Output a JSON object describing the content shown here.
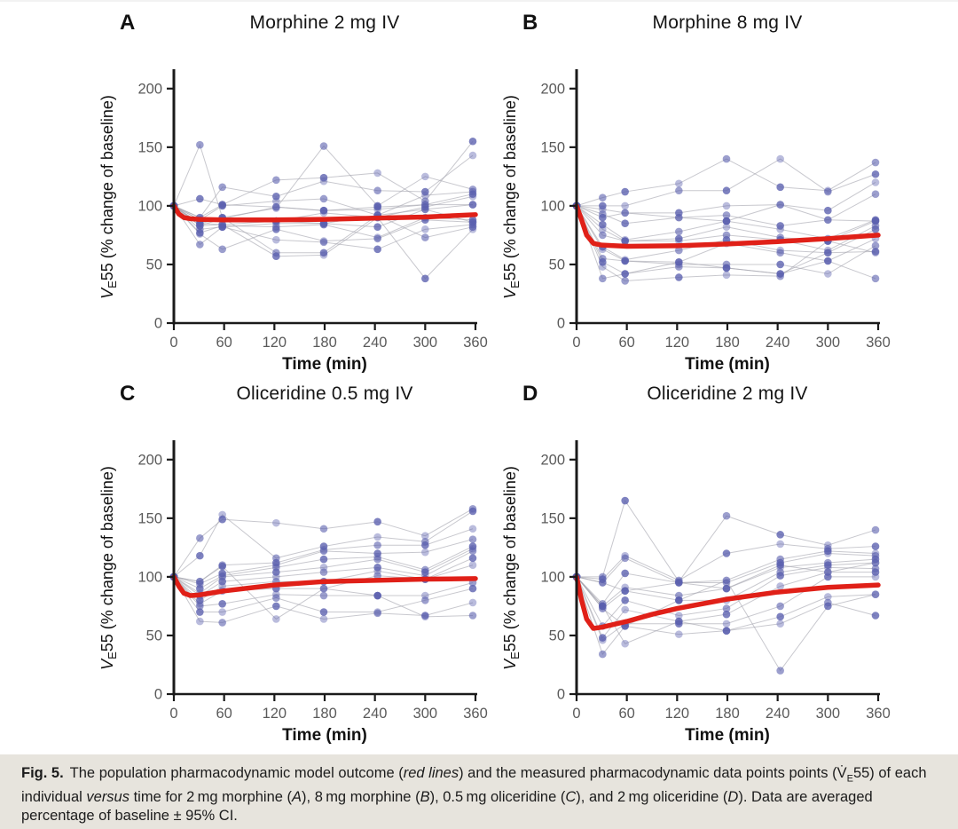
{
  "caption": {
    "segments": [
      {
        "t": "Fig. 5.",
        "b": true
      },
      {
        "t": "The population pharmacodynamic model outcome ("
      },
      {
        "t": "red lines",
        "i": true
      },
      {
        "t": ") and the measured pharmacodynamic data points points (V̇"
      },
      {
        "t": "E",
        "sub": true
      },
      {
        "t": "55) of each individual "
      },
      {
        "t": "versus",
        "i": true
      },
      {
        "t": " time for 2 mg morphine ("
      },
      {
        "t": "A",
        "i": true
      },
      {
        "t": "), 8 mg morphine ("
      },
      {
        "t": "B",
        "i": true
      },
      {
        "t": "), 0.5 mg oliceridine ("
      },
      {
        "t": "C",
        "i": true
      },
      {
        "t": "), and 2 mg oliceridine ("
      },
      {
        "t": "D",
        "i": true
      },
      {
        "t": "). Data are averaged percentage of baseline ± 95% CI."
      }
    ]
  },
  "chart_data": {
    "type": "scatter",
    "description": "Four panels of individual VE55 (% of baseline) versus time with population PD model fit (red line)",
    "times": [
      0,
      30,
      60,
      120,
      180,
      240,
      300,
      360
    ],
    "axes": {
      "xlabel": "Time (min)",
      "x_ticks": [
        0,
        60,
        120,
        180,
        240,
        300,
        360
      ],
      "y_ticks": [
        0,
        50,
        100,
        150,
        200
      ],
      "x_range": [
        0,
        360
      ],
      "y_range": [
        0,
        215
      ]
    },
    "ylabel_parts": [
      {
        "t": "V",
        "i": true
      },
      {
        "t": "E",
        "sub": true
      },
      {
        "t": "55 (% change of baseline)"
      }
    ],
    "colors": {
      "red_line": "#e02018",
      "point": "#5a5fae",
      "connect": "#a3a3ad",
      "axis": "#1a1a1a",
      "tick_text": "#5a5a5a"
    },
    "panels": [
      {
        "label": "A",
        "title": "Morphine 2 mg IV",
        "red_line": [
          [
            0,
            100
          ],
          [
            6,
            93
          ],
          [
            12,
            90
          ],
          [
            20,
            89
          ],
          [
            30,
            88.5
          ],
          [
            60,
            88
          ],
          [
            120,
            88
          ],
          [
            180,
            88.5
          ],
          [
            240,
            89.5
          ],
          [
            300,
            90.5
          ],
          [
            360,
            92.5
          ]
        ],
        "individuals": [
          [
            100,
            152,
            90,
            98,
            151,
            100,
            125,
            114
          ],
          [
            100,
            106,
            101,
            122,
            124,
            128,
            104,
            155
          ],
          [
            100,
            90,
            116,
            108,
            121,
            113,
            112,
            143
          ],
          [
            100,
            88,
            100,
            104,
            106,
            92,
            109,
            112
          ],
          [
            100,
            85,
            89,
            99,
            96,
            97,
            101,
            110
          ],
          [
            100,
            83,
            84,
            87,
            94,
            90,
            99,
            108
          ],
          [
            100,
            80,
            82,
            85,
            85,
            82,
            97,
            101
          ],
          [
            100,
            77,
            83,
            82,
            84,
            73,
            90,
            88
          ],
          [
            100,
            76,
            63,
            80,
            70,
            72,
            88,
            86
          ],
          [
            100,
            67,
            82,
            71,
            69,
            63,
            80,
            84
          ],
          [
            100,
            88,
            90,
            60,
            60,
            92,
            73,
            82
          ],
          [
            100,
            85,
            84,
            57,
            58,
            90,
            38,
            80
          ],
          [
            100,
            90,
            101,
            99,
            96,
            99,
            101,
            101
          ],
          [
            100,
            83,
            89,
            87,
            85,
            92,
            97,
            86
          ]
        ]
      },
      {
        "label": "B",
        "title": "Morphine 8 mg IV",
        "red_line": [
          [
            0,
            100
          ],
          [
            6,
            88
          ],
          [
            12,
            75
          ],
          [
            20,
            68
          ],
          [
            30,
            66.5
          ],
          [
            60,
            65.5
          ],
          [
            120,
            66
          ],
          [
            180,
            67.5
          ],
          [
            240,
            69.5
          ],
          [
            300,
            72
          ],
          [
            360,
            75
          ]
        ],
        "individuals": [
          [
            100,
            107,
            112,
            119,
            140,
            116,
            113,
            137
          ],
          [
            100,
            100,
            100,
            113,
            113,
            140,
            112,
            127
          ],
          [
            100,
            97,
            94,
            94,
            100,
            101,
            96,
            120
          ],
          [
            100,
            93,
            85,
            90,
            92,
            83,
            88,
            110
          ],
          [
            100,
            84,
            71,
            78,
            87,
            80,
            72,
            88
          ],
          [
            100,
            80,
            70,
            72,
            82,
            73,
            70,
            87
          ],
          [
            100,
            75,
            70,
            70,
            75,
            71,
            62,
            83
          ],
          [
            100,
            65,
            54,
            62,
            71,
            62,
            60,
            80
          ],
          [
            100,
            63,
            53,
            52,
            68,
            60,
            53,
            72
          ],
          [
            100,
            55,
            53,
            50,
            50,
            50,
            42,
            66
          ],
          [
            100,
            52,
            42,
            48,
            47,
            42,
            60,
            61
          ],
          [
            100,
            48,
            36,
            39,
            41,
            40,
            70,
            60
          ],
          [
            100,
            38,
            42,
            52,
            47,
            42,
            53,
            38
          ],
          [
            100,
            90,
            94,
            90,
            87,
            101,
            88,
            87
          ]
        ]
      },
      {
        "label": "C",
        "title": "Oliceridine 0.5 mg IV",
        "red_line": [
          [
            0,
            100
          ],
          [
            6,
            92
          ],
          [
            12,
            86
          ],
          [
            20,
            84
          ],
          [
            30,
            84.5
          ],
          [
            60,
            88
          ],
          [
            120,
            93
          ],
          [
            180,
            96
          ],
          [
            240,
            97
          ],
          [
            300,
            98
          ],
          [
            360,
            98.5
          ]
        ],
        "individuals": [
          [
            100,
            133,
            149,
            146,
            141,
            147,
            135,
            158
          ],
          [
            100,
            118,
            153,
            116,
            126,
            134,
            130,
            156
          ],
          [
            100,
            96,
            110,
            112,
            123,
            127,
            127,
            141
          ],
          [
            100,
            94,
            103,
            110,
            122,
            120,
            121,
            132
          ],
          [
            100,
            90,
            101,
            108,
            115,
            117,
            106,
            126
          ],
          [
            100,
            86,
            100,
            104,
            108,
            115,
            104,
            124
          ],
          [
            100,
            84,
            96,
            100,
            104,
            108,
            101,
            122
          ],
          [
            100,
            80,
            92,
            96,
            96,
            105,
            98,
            116
          ],
          [
            100,
            77,
            88,
            90,
            90,
            101,
            98,
            110
          ],
          [
            100,
            75,
            77,
            85,
            84,
            84,
            84,
            95
          ],
          [
            100,
            70,
            70,
            82,
            70,
            70,
            80,
            90
          ],
          [
            100,
            62,
            61,
            75,
            64,
            69,
            67,
            78
          ],
          [
            100,
            96,
            109,
            64,
            90,
            84,
            66,
            67
          ]
        ]
      },
      {
        "label": "D",
        "title": "Oliceridine 2 mg IV",
        "red_line": [
          [
            0,
            100
          ],
          [
            6,
            80
          ],
          [
            12,
            64
          ],
          [
            20,
            56
          ],
          [
            30,
            57
          ],
          [
            60,
            62
          ],
          [
            90,
            68
          ],
          [
            120,
            73
          ],
          [
            180,
            81
          ],
          [
            240,
            87
          ],
          [
            300,
            91
          ],
          [
            360,
            93
          ]
        ],
        "individuals": [
          [
            100,
            100,
            165,
            96,
            152,
            136,
            127,
            140
          ],
          [
            100,
            98,
            118,
            97,
            120,
            128,
            124,
            126
          ],
          [
            100,
            95,
            116,
            95,
            97,
            115,
            122,
            120
          ],
          [
            100,
            77,
            103,
            95,
            95,
            112,
            120,
            118
          ],
          [
            100,
            75,
            91,
            84,
            90,
            108,
            112,
            115
          ],
          [
            100,
            73,
            88,
            80,
            80,
            104,
            110,
            112
          ],
          [
            100,
            58,
            80,
            67,
            73,
            101,
            108,
            107
          ],
          [
            100,
            48,
            72,
            62,
            68,
            92,
            104,
            104
          ],
          [
            100,
            46,
            60,
            60,
            60,
            75,
            100,
            100
          ],
          [
            100,
            34,
            58,
            51,
            54,
            66,
            83,
            85
          ],
          [
            100,
            75,
            43,
            62,
            54,
            60,
            78,
            67
          ],
          [
            100,
            73,
            58,
            80,
            97,
            20,
            75,
            85
          ],
          [
            100,
            95,
            88,
            95,
            90,
            110,
            104,
            112
          ]
        ]
      }
    ]
  }
}
